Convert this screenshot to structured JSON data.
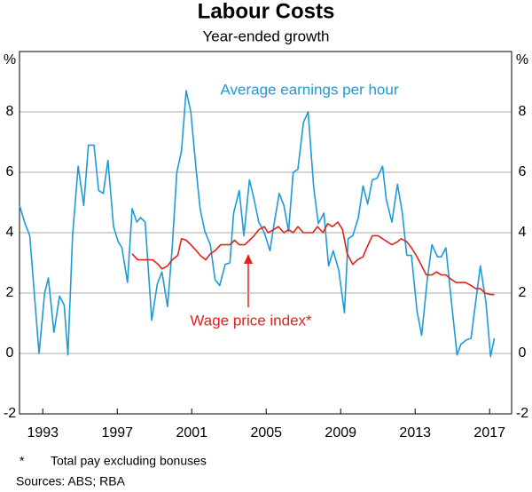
{
  "chart_data": {
    "type": "line",
    "title": "Labour Costs",
    "subtitle": "Year-ended growth",
    "y_unit": "%",
    "xlim": [
      1992.25,
      2018.68
    ],
    "xticks": [
      {
        "value": 1993.5,
        "label": "1993"
      },
      {
        "value": 1997.5,
        "label": "1997"
      },
      {
        "value": 2001.5,
        "label": "2001"
      },
      {
        "value": 2005.5,
        "label": "2005"
      },
      {
        "value": 2009.5,
        "label": "2009"
      },
      {
        "value": 2013.5,
        "label": "2013"
      },
      {
        "value": 2017.5,
        "label": "2017"
      }
    ],
    "ylim": [
      -2,
      10
    ],
    "yticks": [
      -2,
      0,
      2,
      4,
      6,
      8
    ],
    "grid": true,
    "series": [
      {
        "name": "Average earnings per hour",
        "color": "#1e9bd7",
        "x": [
          1992.25,
          1992.55,
          1992.8,
          1993.3,
          1993.6,
          1993.8,
          1994.1,
          1994.4,
          1994.65,
          1994.85,
          1995.1,
          1995.4,
          1995.7,
          1995.95,
          1996.25,
          1996.5,
          1996.75,
          1997.0,
          1997.3,
          1997.55,
          1997.75,
          1998.05,
          1998.3,
          1998.55,
          1998.75,
          1999.0,
          1999.35,
          1999.65,
          1999.9,
          2000.2,
          2000.45,
          2000.7,
          2000.95,
          2001.2,
          2001.45,
          2001.75,
          2001.95,
          2002.2,
          2002.5,
          2002.75,
          2003.0,
          2003.3,
          2003.55,
          2003.75,
          2004.05,
          2004.3,
          2004.6,
          2004.85,
          2005.1,
          2005.4,
          2005.7,
          2005.9,
          2006.2,
          2006.45,
          2006.7,
          2006.95,
          2007.2,
          2007.5,
          2007.75,
          2008.05,
          2008.3,
          2008.6,
          2008.85,
          2009.1,
          2009.4,
          2009.7,
          2009.9,
          2010.15,
          2010.45,
          2010.7,
          2010.95,
          2011.2,
          2011.45,
          2011.75,
          2011.95,
          2012.25,
          2012.55,
          2012.8,
          2013.05,
          2013.3,
          2013.6,
          2013.85,
          2014.15,
          2014.4,
          2014.7,
          2014.9,
          2015.15,
          2015.45,
          2015.75,
          2015.95,
          2016.25,
          2016.5,
          2016.75,
          2017.0,
          2017.3,
          2017.55,
          2017.75
        ],
        "values": [
          4.9,
          4.3,
          3.9,
          0,
          2.0,
          2.5,
          0.7,
          1.9,
          1.6,
          -0.05,
          3.9,
          6.2,
          4.9,
          6.9,
          6.9,
          5.4,
          5.3,
          6.4,
          4.2,
          3.7,
          3.5,
          2.35,
          4.8,
          4.35,
          4.5,
          4.35,
          1.1,
          2.3,
          2.7,
          1.55,
          3.5,
          6.0,
          6.7,
          8.7,
          8.0,
          6.0,
          4.8,
          4.05,
          3.6,
          2.45,
          2.25,
          2.95,
          3.0,
          4.65,
          5.4,
          3.9,
          5.75,
          5.1,
          4.35,
          4.0,
          3.4,
          4.2,
          5.3,
          4.9,
          4.05,
          6.0,
          6.1,
          7.65,
          8.0,
          5.5,
          4.3,
          4.65,
          2.9,
          3.4,
          2.75,
          1.35,
          3.8,
          3.9,
          4.5,
          5.55,
          4.95,
          5.75,
          5.8,
          6.2,
          5.1,
          4.35,
          5.6,
          4.7,
          3.25,
          3.25,
          1.4,
          0.6,
          2.45,
          3.6,
          3.2,
          3.2,
          3.5,
          1.7,
          -0.05,
          0.3,
          0.45,
          0.5,
          1.7,
          2.9,
          1.7,
          -0.1,
          0.5
        ]
      },
      {
        "name": "Wage price index*",
        "color": "#e2231a",
        "x": [
          1998.3,
          1998.6,
          1998.9,
          1999.15,
          1999.4,
          1999.7,
          1999.9,
          2000.2,
          2000.45,
          2000.75,
          2000.95,
          2001.2,
          2001.45,
          2001.75,
          2001.95,
          2002.25,
          2002.5,
          2002.75,
          2003.05,
          2003.3,
          2003.55,
          2003.8,
          2004.05,
          2004.35,
          2004.6,
          2004.85,
          2005.1,
          2005.4,
          2005.6,
          2005.9,
          2006.15,
          2006.45,
          2006.7,
          2006.95,
          2007.2,
          2007.5,
          2007.7,
          2008.0,
          2008.25,
          2008.55,
          2008.8,
          2009.05,
          2009.35,
          2009.6,
          2009.85,
          2010.15,
          2010.4,
          2010.7,
          2010.9,
          2011.2,
          2011.5,
          2011.75,
          2012.0,
          2012.25,
          2012.55,
          2012.75,
          2013.05,
          2013.3,
          2013.6,
          2013.85,
          2014.1,
          2014.4,
          2014.65,
          2014.9,
          2015.15,
          2015.45,
          2015.7,
          2015.95,
          2016.2,
          2016.5,
          2016.75,
          2017.0,
          2017.25,
          2017.55,
          2017.75
        ],
        "values": [
          3.3,
          3.1,
          3.1,
          3.1,
          3.1,
          2.95,
          2.8,
          2.9,
          3.1,
          3.25,
          3.8,
          3.75,
          3.6,
          3.4,
          3.25,
          3.1,
          3.3,
          3.4,
          3.6,
          3.6,
          3.6,
          3.75,
          3.6,
          3.6,
          3.75,
          3.9,
          4.1,
          4.2,
          4.0,
          4.1,
          4.2,
          4.0,
          4.1,
          4.0,
          4.2,
          4.0,
          4.0,
          4.0,
          4.2,
          4.0,
          4.3,
          4.2,
          4.35,
          4.1,
          3.3,
          2.95,
          3.1,
          3.2,
          3.5,
          3.9,
          3.9,
          3.8,
          3.7,
          3.6,
          3.7,
          3.8,
          3.7,
          3.5,
          3.2,
          2.9,
          2.6,
          2.6,
          2.7,
          2.6,
          2.6,
          2.45,
          2.35,
          2.35,
          2.35,
          2.25,
          2.15,
          2.15,
          2.0,
          1.95,
          1.95
        ]
      }
    ],
    "footnote_marker": "*",
    "footnote": "Total pay excluding bonuses",
    "sources": "Sources: ABS; RBA"
  }
}
